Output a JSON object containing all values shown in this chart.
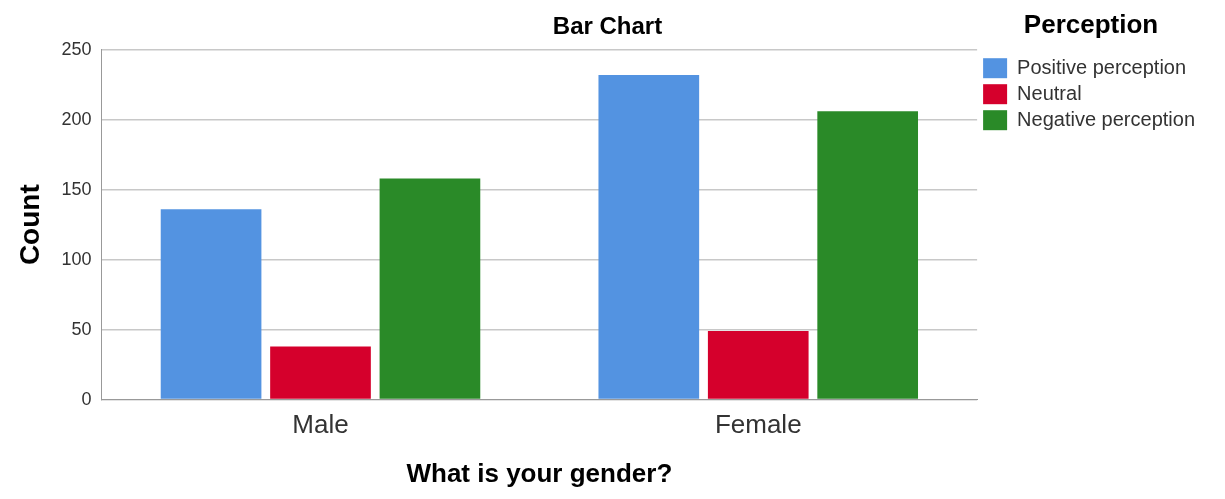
{
  "chart_data": {
    "type": "bar",
    "title": "Bar Chart",
    "xlabel": "What is your gender?",
    "ylabel": "Count",
    "legend_title": "Perception",
    "categories": [
      "Male",
      "Female"
    ],
    "series": [
      {
        "name": "Positive perception",
        "color": "#5393e1",
        "values": [
          136,
          232
        ]
      },
      {
        "name": "Neutral",
        "color": "#d5002c",
        "values": [
          38,
          49
        ]
      },
      {
        "name": "Negative perception",
        "color": "#2a8a28",
        "values": [
          158,
          206
        ]
      }
    ],
    "ylim": [
      0,
      250
    ],
    "yticks": [
      0,
      50,
      100,
      150,
      200,
      250
    ],
    "grid": "y",
    "legend": "top right"
  }
}
